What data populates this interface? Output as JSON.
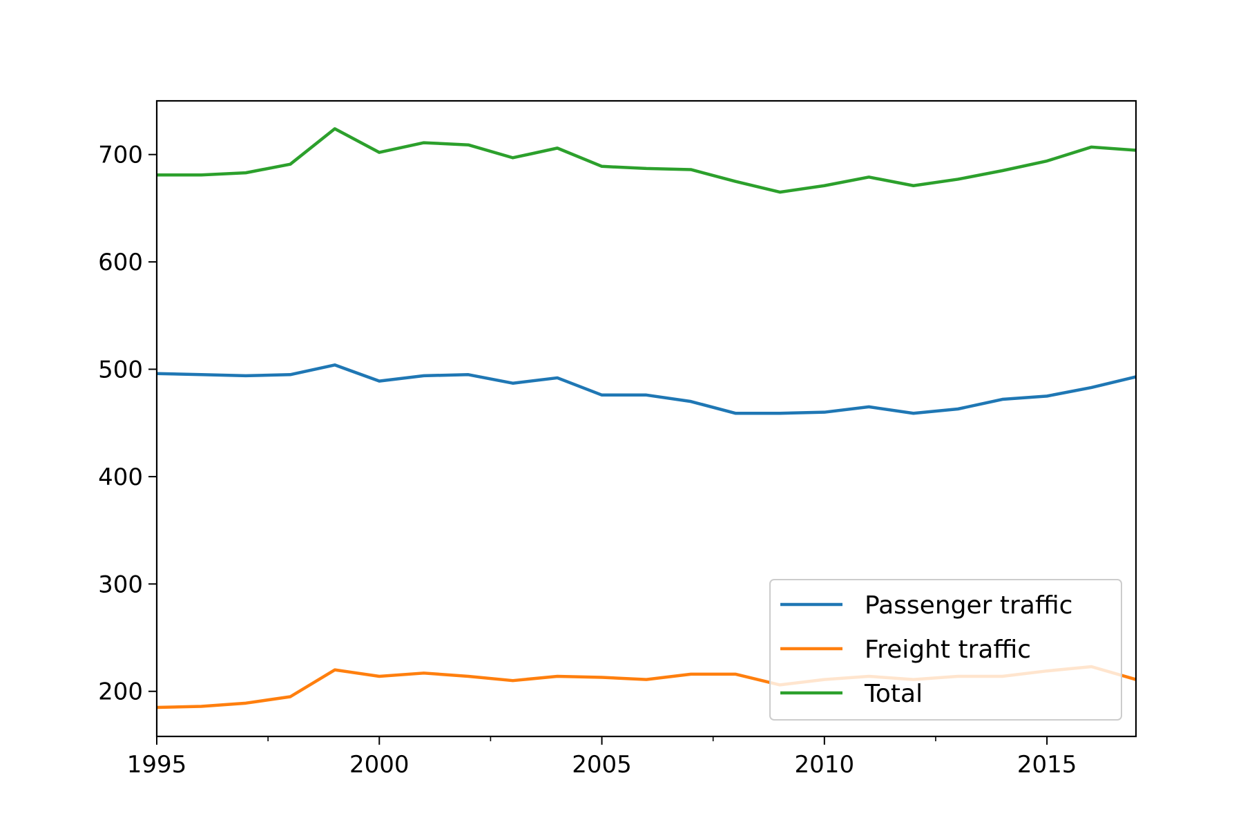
{
  "chart_data": {
    "type": "line",
    "title": "",
    "xlabel": "",
    "ylabel": "",
    "x": [
      1995,
      1996,
      1997,
      1998,
      1999,
      2000,
      2001,
      2002,
      2003,
      2004,
      2005,
      2006,
      2007,
      2008,
      2009,
      2010,
      2011,
      2012,
      2013,
      2014,
      2015,
      2016,
      2017
    ],
    "xlim": [
      1995,
      2017
    ],
    "ylim": [
      158,
      750
    ],
    "xticks": [
      1995,
      2000,
      2005,
      2010,
      2015
    ],
    "xticks_minor": [
      1997.5,
      2002.5,
      2007.5,
      2012.5
    ],
    "yticks": [
      200,
      300,
      400,
      500,
      600,
      700
    ],
    "grid": false,
    "legend_position": "lower-right",
    "series": [
      {
        "name": "Passenger traffic",
        "color": "#1f77b4",
        "values": [
          496,
          495,
          494,
          495,
          504,
          489,
          494,
          495,
          487,
          492,
          476,
          476,
          470,
          459,
          459,
          460,
          465,
          459,
          463,
          472,
          475,
          483,
          493
        ]
      },
      {
        "name": "Freight traffic",
        "color": "#ff7f0e",
        "values": [
          185,
          186,
          189,
          195,
          220,
          214,
          217,
          214,
          210,
          214,
          213,
          211,
          216,
          216,
          206,
          211,
          214,
          211,
          214,
          214,
          219,
          223,
          211
        ]
      },
      {
        "name": "Total",
        "color": "#2ca02c",
        "values": [
          681,
          681,
          683,
          691,
          724,
          702,
          711,
          709,
          697,
          706,
          689,
          687,
          686,
          675,
          665,
          671,
          679,
          671,
          677,
          685,
          694,
          707,
          704
        ]
      }
    ]
  }
}
